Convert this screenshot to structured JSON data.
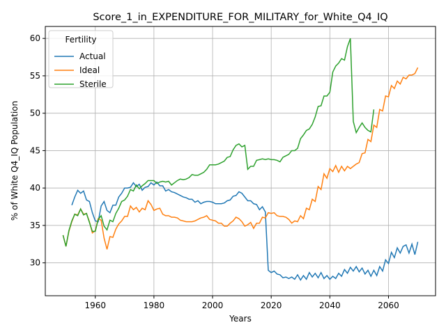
{
  "chart_data": {
    "type": "line",
    "title": "Score_1_in_EXPENDITURE_FOR_MILITARY_for_White_Q4_IQ",
    "xlabel": "Years",
    "ylabel": "% of White Q4_IQ Population",
    "legend_title": "Fertility",
    "legend": "upper left",
    "grid": true,
    "xlim": [
      1942.95,
      2076.05
    ],
    "xticks": [
      1960,
      1980,
      2000,
      2020,
      2040,
      2060
    ],
    "ylim": [
      25.6,
      61.6
    ],
    "yticks": [
      30,
      35,
      40,
      45,
      50,
      55,
      60
    ],
    "x": [
      1949,
      1950,
      1951,
      1952,
      1953,
      1954,
      1955,
      1956,
      1957,
      1958,
      1959,
      1960,
      1961,
      1962,
      1963,
      1964,
      1965,
      1966,
      1967,
      1968,
      1969,
      1970,
      1971,
      1972,
      1973,
      1974,
      1975,
      1976,
      1977,
      1978,
      1979,
      1980,
      1981,
      1982,
      1983,
      1984,
      1985,
      1986,
      1987,
      1988,
      1989,
      1990,
      1991,
      1992,
      1993,
      1994,
      1995,
      1996,
      1997,
      1998,
      1999,
      2000,
      2001,
      2002,
      2003,
      2004,
      2005,
      2006,
      2007,
      2008,
      2009,
      2010,
      2011,
      2012,
      2013,
      2014,
      2015,
      2016,
      2017,
      2018,
      2019,
      2020,
      2021,
      2022,
      2023,
      2024,
      2025,
      2026,
      2027,
      2028,
      2029,
      2030,
      2031,
      2032,
      2033,
      2034,
      2035,
      2036,
      2037,
      2038,
      2039,
      2040,
      2041,
      2042,
      2043,
      2044,
      2045,
      2046,
      2047,
      2048,
      2049,
      2050,
      2051,
      2052,
      2053,
      2054,
      2055,
      2056,
      2057,
      2058,
      2059,
      2060,
      2061,
      2062,
      2063,
      2064,
      2065,
      2066,
      2067,
      2068,
      2069,
      2070
    ],
    "series": [
      {
        "name": "Actual",
        "color": "#1f77b4",
        "values": [
          null,
          null,
          null,
          37.7,
          38.8,
          39.7,
          39.3,
          39.6,
          38.4,
          38.2,
          36.7,
          35.6,
          35.5,
          37.6,
          38.2,
          37.0,
          36.7,
          37.7,
          37.7,
          38.8,
          39.3,
          40.0,
          40.0,
          40.1,
          40.7,
          40.2,
          40.5,
          39.7,
          40.1,
          40.2,
          40.7,
          40.4,
          40.8,
          40.3,
          40.3,
          39.6,
          39.8,
          39.5,
          39.4,
          39.2,
          39.0,
          38.8,
          38.7,
          38.5,
          38.5,
          38.1,
          38.3,
          37.9,
          38.1,
          38.2,
          38.2,
          38.1,
          37.9,
          37.9,
          37.9,
          38.0,
          38.3,
          38.4,
          38.9,
          39.0,
          39.5,
          39.3,
          38.8,
          38.3,
          38.3,
          37.9,
          37.8,
          37.1,
          37.5,
          36.8,
          29.0,
          28.7,
          28.9,
          28.5,
          28.4,
          28.0,
          28.1,
          27.9,
          28.1,
          27.8,
          28.4,
          27.7,
          28.3,
          27.8,
          28.7,
          28.1,
          28.6,
          28.0,
          28.7,
          27.9,
          28.3,
          27.8,
          28.2,
          27.9,
          28.6,
          28.2,
          29.1,
          28.6,
          29.4,
          28.9,
          29.5,
          28.8,
          29.3,
          28.5,
          29.0,
          28.2,
          29.0,
          28.3,
          29.5,
          28.9,
          30.4,
          29.9,
          31.4,
          30.7,
          32.0,
          31.3,
          32.2,
          32.4,
          31.3,
          32.5,
          31.1,
          32.8
        ]
      },
      {
        "name": "Ideal",
        "color": "#ff7f0e",
        "values": [
          33.7,
          32.2,
          34.2,
          35.5,
          36.5,
          36.4,
          37.2,
          36.5,
          36.6,
          35.5,
          34.0,
          34.3,
          35.9,
          35.7,
          33.3,
          31.8,
          33.5,
          33.4,
          34.5,
          35.2,
          35.6,
          36.2,
          36.2,
          37.6,
          37.1,
          37.4,
          36.8,
          37.3,
          37.1,
          38.3,
          37.8,
          37.0,
          37.2,
          37.3,
          36.5,
          36.3,
          36.3,
          36.1,
          36.1,
          36.0,
          35.7,
          35.6,
          35.5,
          35.5,
          35.5,
          35.6,
          35.8,
          36.0,
          36.1,
          36.3,
          35.8,
          35.7,
          35.6,
          35.3,
          35.3,
          34.9,
          34.9,
          35.3,
          35.6,
          36.1,
          35.9,
          35.5,
          34.9,
          35.1,
          35.4,
          34.6,
          35.3,
          35.3,
          36.1,
          36.0,
          36.7,
          36.6,
          36.7,
          36.3,
          36.2,
          36.2,
          36.1,
          35.8,
          35.3,
          35.6,
          35.5,
          36.3,
          35.9,
          37.3,
          37.1,
          38.5,
          38.2,
          40.2,
          39.8,
          41.9,
          41.3,
          42.6,
          42.2,
          43.0,
          42.1,
          42.9,
          42.3,
          42.9,
          42.6,
          42.9,
          43.2,
          43.4,
          44.6,
          44.7,
          46.5,
          46.2,
          48.4,
          48.1,
          50.5,
          50.3,
          52.3,
          52.2,
          53.7,
          53.3,
          54.3,
          53.9,
          54.8,
          54.6,
          55.1,
          55.1,
          55.3,
          56.1
        ]
      },
      {
        "name": "Sterile",
        "color": "#2ca02c",
        "values": [
          33.7,
          32.2,
          34.3,
          35.6,
          36.5,
          36.3,
          37.2,
          36.4,
          36.6,
          35.4,
          34.2,
          34.2,
          35.8,
          36.3,
          34.9,
          34.4,
          35.7,
          35.5,
          36.6,
          37.3,
          38.2,
          38.4,
          38.9,
          39.8,
          39.6,
          40.4,
          39.9,
          40.3,
          40.6,
          41.0,
          41.0,
          41.0,
          40.6,
          40.8,
          40.9,
          40.8,
          40.9,
          40.4,
          40.7,
          41.0,
          41.2,
          41.1,
          41.2,
          41.4,
          41.8,
          41.7,
          41.7,
          41.9,
          42.1,
          42.5,
          43.1,
          43.1,
          43.1,
          43.2,
          43.4,
          43.6,
          44.1,
          44.2,
          45.1,
          45.7,
          45.9,
          45.5,
          45.7,
          42.5,
          42.9,
          42.9,
          43.7,
          43.8,
          43.9,
          43.8,
          43.9,
          43.8,
          43.8,
          43.7,
          43.5,
          44.1,
          44.3,
          44.5,
          45.0,
          45.0,
          45.3,
          46.6,
          47.1,
          47.7,
          47.9,
          48.5,
          49.5,
          50.9,
          51.0,
          52.3,
          52.3,
          52.8,
          55.5,
          56.3,
          56.7,
          57.3,
          57.1,
          58.9,
          60.0,
          48.9,
          47.4,
          48.1,
          48.7,
          48.1,
          47.7,
          47.5,
          50.5,
          null,
          null,
          null,
          null,
          null,
          null,
          null,
          null,
          null,
          null,
          null,
          null,
          null,
          null,
          null
        ]
      }
    ]
  }
}
